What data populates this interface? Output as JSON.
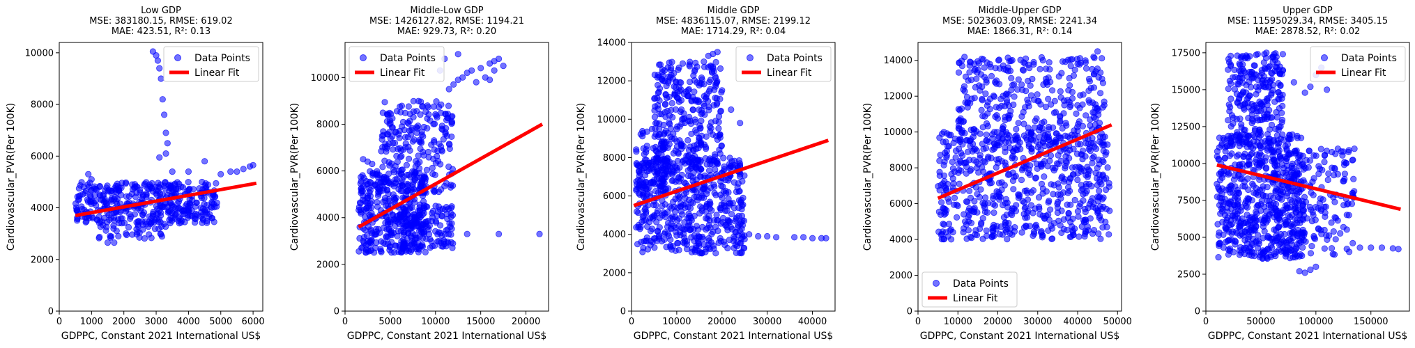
{
  "figure_title": "",
  "chart_data": [
    {
      "type": "scatter",
      "title_lines": [
        "Low GDP",
        "MSE: 383180.15, RMSE: 619.02",
        "MAE: 423.51, R²: 0.13"
      ],
      "xlabel": "GDPPC, Constant 2021 International US$",
      "ylabel": "Cardiovascular_PVR(Per 100K)",
      "xlim": [
        0,
        6300
      ],
      "ylim": [
        0,
        10400
      ],
      "xticks": [
        0,
        1000,
        2000,
        3000,
        4000,
        5000,
        6000
      ],
      "yticks": [
        0,
        2000,
        4000,
        6000,
        8000,
        10000
      ],
      "legend": {
        "position": "top-right",
        "entries": [
          "Data Points",
          "Linear Fit"
        ]
      },
      "fit_line": [
        [
          500,
          3700
        ],
        [
          6100,
          4950
        ]
      ],
      "scatter_clusters": [
        {
          "x": [
            500,
            4900
          ],
          "y": [
            3400,
            5000
          ],
          "n": 420
        },
        {
          "x": [
            1200,
            3300
          ],
          "y": [
            2800,
            3400
          ],
          "n": 40
        }
      ],
      "scatter_points": [
        [
          2900,
          10050
        ],
        [
          3000,
          9900
        ],
        [
          3050,
          9700
        ],
        [
          3100,
          9400
        ],
        [
          3150,
          9000
        ],
        [
          3200,
          8200
        ],
        [
          3250,
          7600
        ],
        [
          3300,
          6900
        ],
        [
          3350,
          6500
        ],
        [
          3300,
          6100
        ],
        [
          3100,
          5950
        ],
        [
          3500,
          5400
        ],
        [
          4000,
          5400
        ],
        [
          4500,
          5800
        ],
        [
          5000,
          5300
        ],
        [
          5300,
          5400
        ],
        [
          5500,
          5400
        ],
        [
          5700,
          5500
        ],
        [
          5900,
          5600
        ],
        [
          6000,
          5650
        ],
        [
          1500,
          2650
        ],
        [
          1700,
          2650
        ],
        [
          900,
          5300
        ],
        [
          1000,
          5100
        ]
      ]
    },
    {
      "type": "scatter",
      "title_lines": [
        "Middle-Low GDP",
        "MSE: 1426127.82, RMSE: 1194.21",
        "MAE: 929.73, R²: 0.20"
      ],
      "xlabel": "GDPPC, Constant 2021 International US$",
      "ylabel": "Cardiovascular_PVR(Per 100K)",
      "xlim": [
        0,
        22500
      ],
      "ylim": [
        0,
        11500
      ],
      "xticks": [
        0,
        5000,
        10000,
        15000,
        20000
      ],
      "yticks": [
        0,
        2000,
        4000,
        6000,
        8000,
        10000
      ],
      "legend": {
        "position": "top-left",
        "entries": [
          "Data Points",
          "Linear Fit"
        ]
      },
      "fit_line": [
        [
          1500,
          3600
        ],
        [
          21800,
          8000
        ]
      ],
      "scatter_clusters": [
        {
          "x": [
            1500,
            9000
          ],
          "y": [
            2500,
            6000
          ],
          "n": 380
        },
        {
          "x": [
            4000,
            12000
          ],
          "y": [
            5000,
            9000
          ],
          "n": 220
        },
        {
          "x": [
            6000,
            12000
          ],
          "y": [
            2700,
            4500
          ],
          "n": 120
        }
      ],
      "scatter_points": [
        [
          11500,
          9500
        ],
        [
          12000,
          9700
        ],
        [
          12500,
          9900
        ],
        [
          13000,
          10000
        ],
        [
          13500,
          10200
        ],
        [
          14000,
          10300
        ],
        [
          15000,
          10400
        ],
        [
          16000,
          10600
        ],
        [
          16500,
          10700
        ],
        [
          17000,
          10800
        ],
        [
          14500,
          9800
        ],
        [
          15500,
          10000
        ],
        [
          16500,
          10300
        ],
        [
          16000,
          9900
        ],
        [
          17500,
          10500
        ],
        [
          12500,
          11000
        ],
        [
          11000,
          10800
        ],
        [
          10500,
          10300
        ],
        [
          13500,
          3300
        ],
        [
          17000,
          3300
        ],
        [
          21500,
          3300
        ],
        [
          2000,
          6500
        ],
        [
          2500,
          6400
        ],
        [
          3000,
          6300
        ]
      ]
    },
    {
      "type": "scatter",
      "title_lines": [
        "Middle GDP",
        "MSE: 4836115.07, RMSE: 2199.12",
        "MAE: 1714.29, R²: 0.04"
      ],
      "xlabel": "GDPPC, Constant 2021 International US$",
      "ylabel": "Cardiovascular_PVR(Per 100K)",
      "xlim": [
        0,
        45000
      ],
      "ylim": [
        0,
        14000
      ],
      "xticks": [
        0,
        10000,
        20000,
        30000,
        40000
      ],
      "yticks": [
        0,
        2000,
        4000,
        6000,
        8000,
        10000,
        12000,
        14000
      ],
      "legend": {
        "position": "top-right",
        "entries": [
          "Data Points",
          "Linear Fit"
        ]
      },
      "fit_line": [
        [
          500,
          5500
        ],
        [
          43500,
          8900
        ]
      ],
      "scatter_clusters": [
        {
          "x": [
            1000,
            25000
          ],
          "y": [
            3000,
            8000
          ],
          "n": 550
        },
        {
          "x": [
            5000,
            20000
          ],
          "y": [
            7500,
            13000
          ],
          "n": 300
        },
        {
          "x": [
            1000,
            8000
          ],
          "y": [
            6000,
            9500
          ],
          "n": 80
        }
      ],
      "scatter_points": [
        [
          17000,
          13300
        ],
        [
          18000,
          13400
        ],
        [
          19000,
          13500
        ],
        [
          16000,
          13000
        ],
        [
          20000,
          11500
        ],
        [
          30000,
          3900
        ],
        [
          32000,
          3850
        ],
        [
          36000,
          3850
        ],
        [
          38000,
          3850
        ],
        [
          40000,
          3800
        ],
        [
          42000,
          3800
        ],
        [
          43000,
          3800
        ],
        [
          28000,
          3900
        ],
        [
          26000,
          4000
        ],
        [
          24000,
          9800
        ],
        [
          22000,
          10500
        ]
      ]
    },
    {
      "type": "scatter",
      "title_lines": [
        "Middle-Upper GDP",
        "MSE: 5023603.09, RMSE: 2241.34",
        "MAE: 1866.31, R²: 0.14"
      ],
      "xlabel": "GDPPC, Constant 2021 International US$",
      "ylabel": "Cardiovascular_PVR(Per 100K)",
      "xlim": [
        0,
        51000
      ],
      "ylim": [
        0,
        15000
      ],
      "xticks": [
        0,
        10000,
        20000,
        30000,
        40000,
        50000
      ],
      "yticks": [
        0,
        2000,
        4000,
        6000,
        8000,
        10000,
        12000,
        14000
      ],
      "legend": {
        "position": "bottom-left",
        "entries": [
          "Data Points",
          "Linear Fit"
        ]
      },
      "fit_line": [
        [
          5000,
          6300
        ],
        [
          48500,
          10400
        ]
      ],
      "scatter_clusters": [
        {
          "x": [
            5000,
            48000
          ],
          "y": [
            4000,
            10000
          ],
          "n": 600
        },
        {
          "x": [
            10000,
            47000
          ],
          "y": [
            9000,
            14200
          ],
          "n": 350
        }
      ],
      "scatter_points": [
        [
          45000,
          14500
        ],
        [
          44000,
          14200
        ],
        [
          27000,
          14100
        ],
        [
          29000,
          13900
        ],
        [
          33000,
          13500
        ],
        [
          40000,
          13800
        ],
        [
          36000,
          5600
        ],
        [
          44000,
          6000
        ],
        [
          46000,
          5700
        ],
        [
          48000,
          5600
        ],
        [
          6000,
          4300
        ],
        [
          7000,
          4400
        ],
        [
          8000,
          4500
        ]
      ]
    },
    {
      "type": "scatter",
      "title_lines": [
        "Upper GDP",
        "MSE: 11595029.34, RMSE: 3405.15",
        "MAE: 2878.52, R²: 0.02"
      ],
      "xlabel": "GDPPC, Constant 2021 International US$",
      "ylabel": "Cardiovascular_PVR(Per 100K)",
      "xlim": [
        0,
        185000
      ],
      "ylim": [
        0,
        18200
      ],
      "xticks": [
        0,
        50000,
        100000,
        150000
      ],
      "yticks": [
        0,
        2500,
        5000,
        7500,
        10000,
        12500,
        15000,
        17500
      ],
      "legend": {
        "position": "top-right",
        "entries": [
          "Data Points",
          "Linear Fit"
        ]
      },
      "fit_line": [
        [
          10000,
          9900
        ],
        [
          177000,
          6900
        ]
      ],
      "scatter_clusters": [
        {
          "x": [
            10000,
            90000
          ],
          "y": [
            3500,
            12000
          ],
          "n": 600
        },
        {
          "x": [
            20000,
            70000
          ],
          "y": [
            11000,
            17500
          ],
          "n": 250
        },
        {
          "x": [
            60000,
            135000
          ],
          "y": [
            3800,
            11000
          ],
          "n": 200
        }
      ],
      "scatter_points": [
        [
          55000,
          17500
        ],
        [
          60000,
          17200
        ],
        [
          65000,
          16800
        ],
        [
          70000,
          16300
        ],
        [
          80000,
          15500
        ],
        [
          90000,
          14800
        ],
        [
          95000,
          15200
        ],
        [
          100000,
          16000
        ],
        [
          105000,
          16500
        ],
        [
          110000,
          15000
        ],
        [
          120000,
          11000
        ],
        [
          125000,
          10800
        ],
        [
          130000,
          10900
        ],
        [
          135000,
          11000
        ],
        [
          130000,
          6500
        ],
        [
          140000,
          4300
        ],
        [
          150000,
          4300
        ],
        [
          160000,
          4300
        ],
        [
          170000,
          4250
        ],
        [
          175000,
          4200
        ],
        [
          90000,
          2600
        ],
        [
          85000,
          2700
        ],
        [
          95000,
          2800
        ],
        [
          100000,
          3000
        ]
      ]
    }
  ],
  "colors": {
    "points": "#0000ff",
    "line": "#ff0000",
    "axes": "#000000",
    "background": "#ffffff"
  }
}
